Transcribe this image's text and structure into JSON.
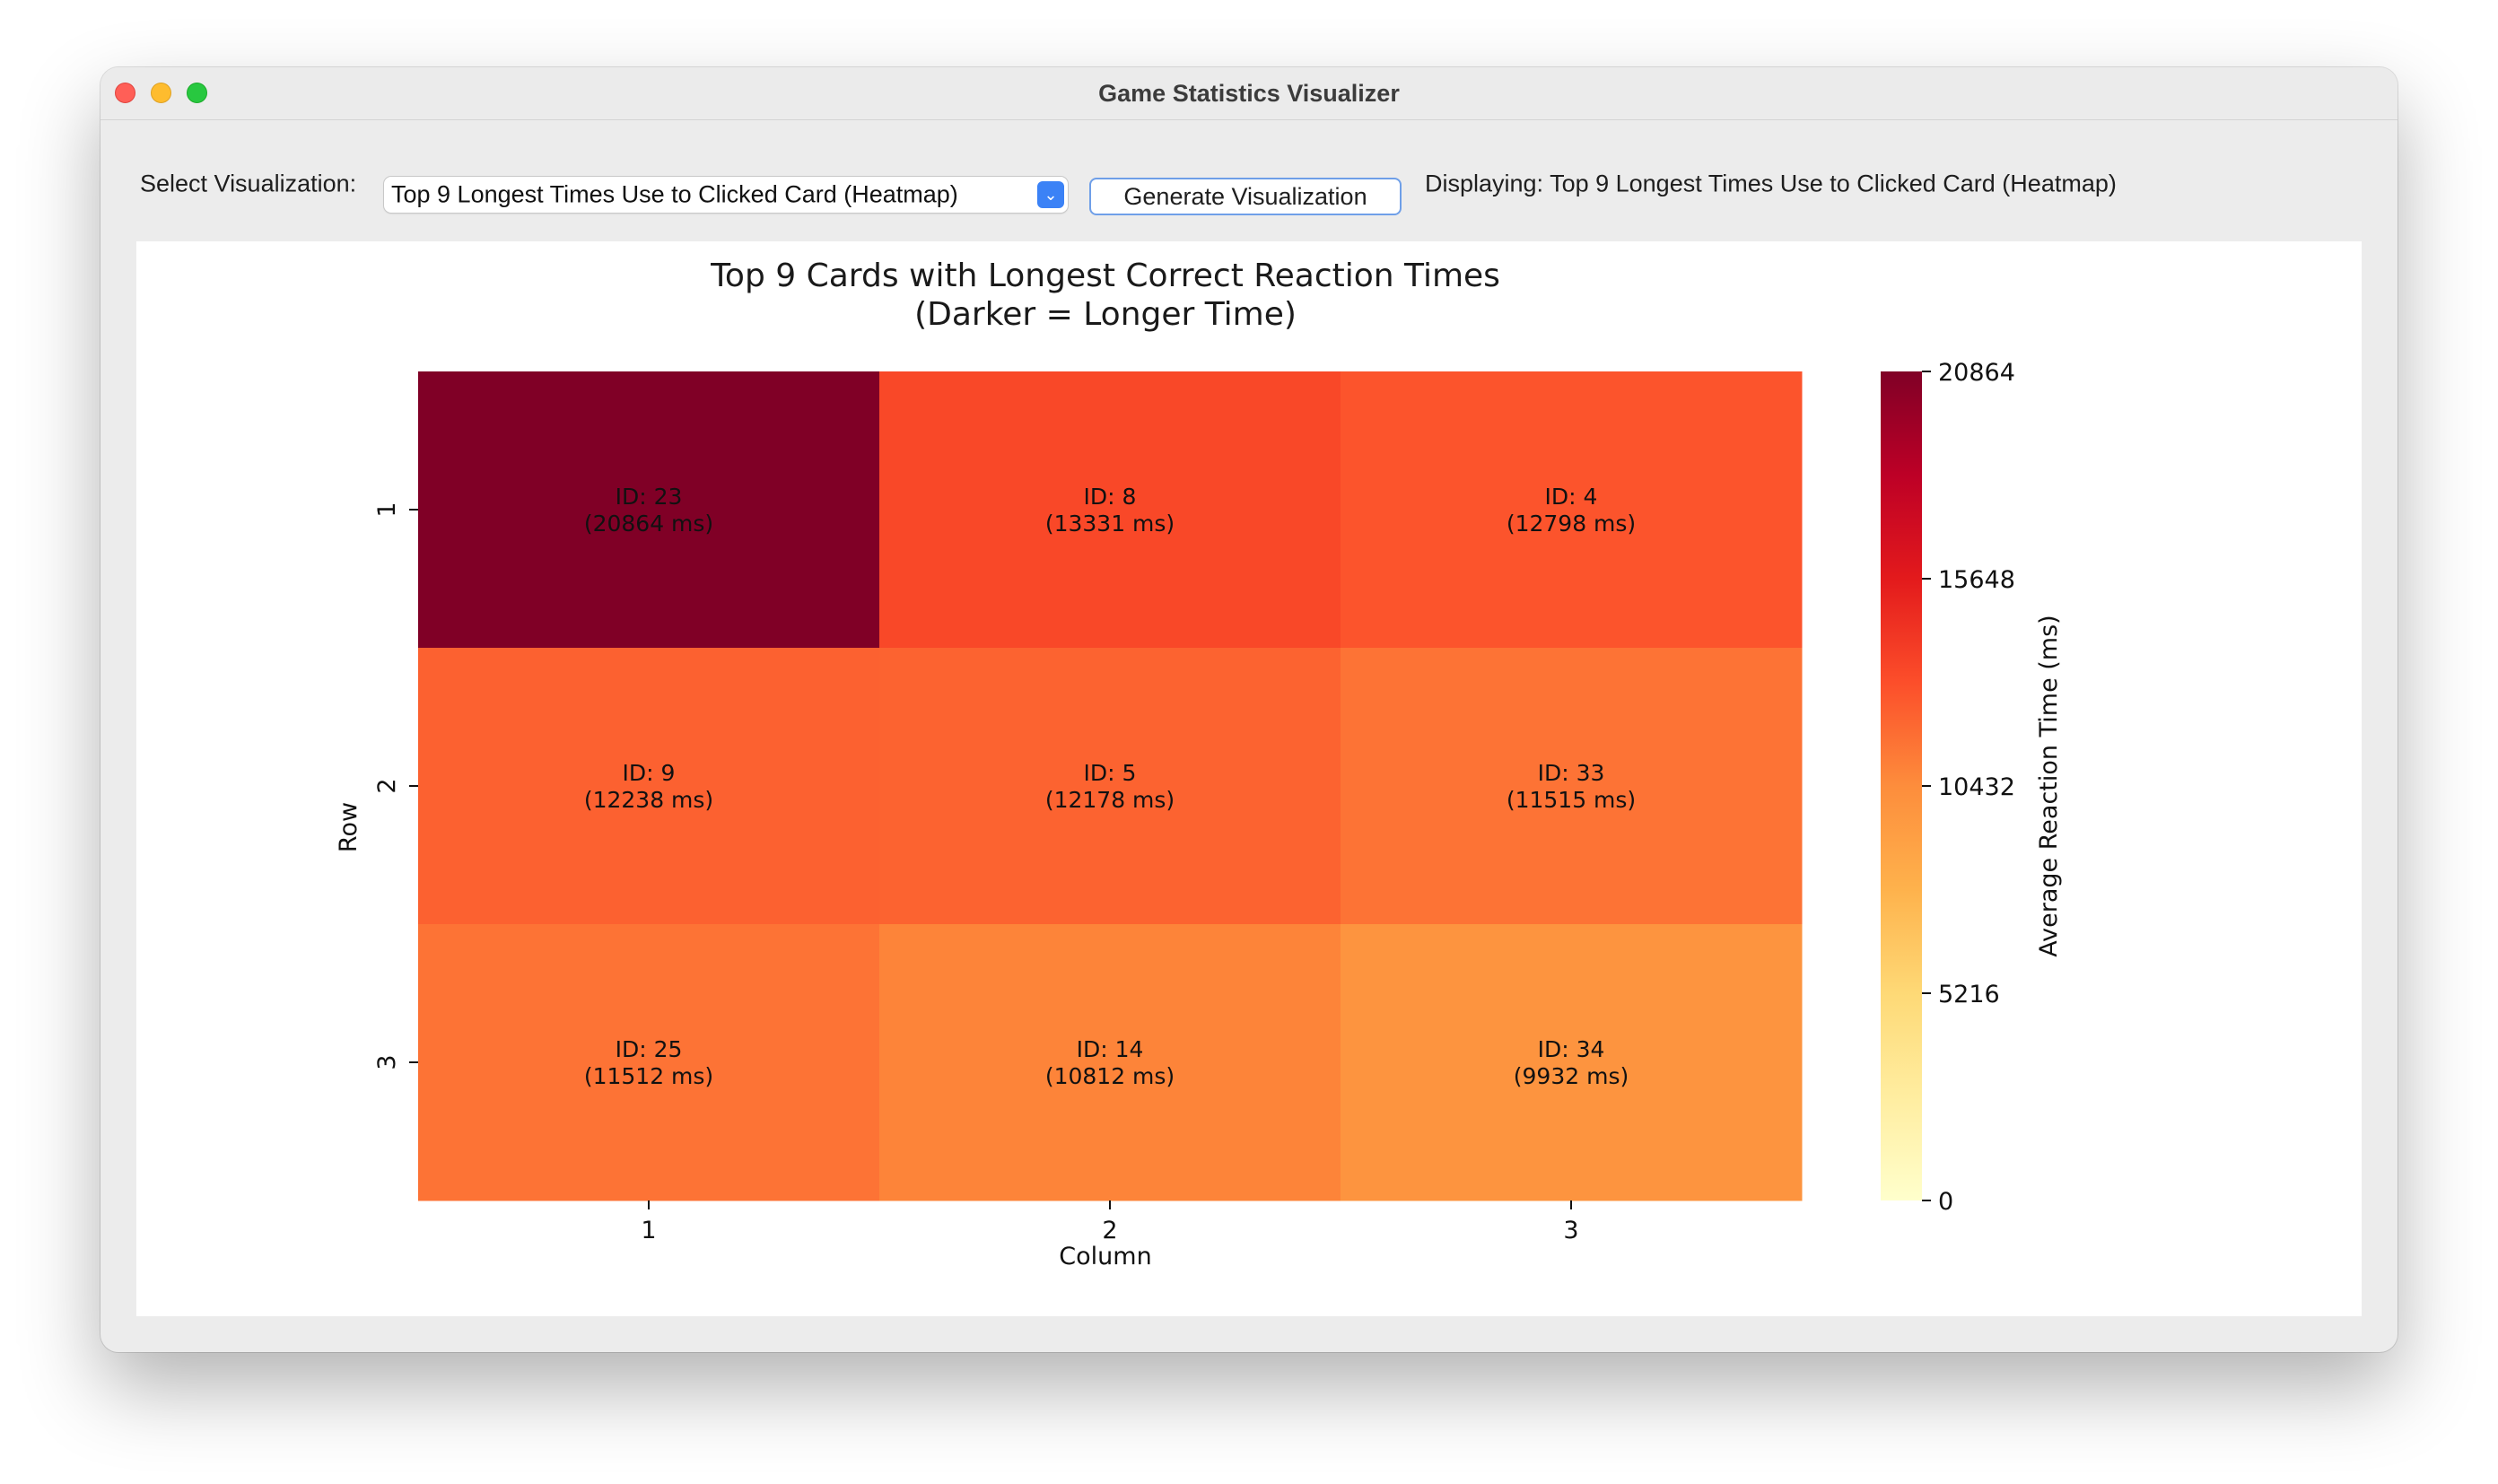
{
  "window": {
    "title": "Game Statistics Visualizer"
  },
  "toolbar": {
    "select_label": "Select Visualization:",
    "selected_option": "Top 9 Longest Times Use to Clicked Card (Heatmap)",
    "generate_button": "Generate Visualization",
    "status_text": "Displaying: Top 9 Longest Times Use to Clicked Card (Heatmap)"
  },
  "icons": {
    "dropdown": "chevron-down-icon"
  },
  "chart_data": {
    "type": "heatmap",
    "title": "Top 9 Cards with Longest Correct Reaction Times",
    "subtitle": "(Darker = Longer Time)",
    "xlabel": "Column",
    "ylabel": "Row",
    "x_categories": [
      "1",
      "2",
      "3"
    ],
    "y_categories": [
      "1",
      "2",
      "3"
    ],
    "cells": [
      [
        {
          "id_label": "ID: 23",
          "value_label": "(20864 ms)",
          "value": 20864
        },
        {
          "id_label": "ID: 8",
          "value_label": "(13331 ms)",
          "value": 13331
        },
        {
          "id_label": "ID: 4",
          "value_label": "(12798 ms)",
          "value": 12798
        }
      ],
      [
        {
          "id_label": "ID: 9",
          "value_label": "(12238 ms)",
          "value": 12238
        },
        {
          "id_label": "ID: 5",
          "value_label": "(12178 ms)",
          "value": 12178
        },
        {
          "id_label": "ID: 33",
          "value_label": "(11515 ms)",
          "value": 11515
        }
      ],
      [
        {
          "id_label": "ID: 25",
          "value_label": "(11512 ms)",
          "value": 11512
        },
        {
          "id_label": "ID: 14",
          "value_label": "(10812 ms)",
          "value": 10812
        },
        {
          "id_label": "ID: 34",
          "value_label": "(9932 ms)",
          "value": 9932
        }
      ]
    ],
    "colorbar": {
      "label": "Average Reaction Time (ms)",
      "range": [
        0,
        20864
      ],
      "ticks": [
        0,
        5216,
        10432,
        15648,
        20864
      ],
      "colormap": "YlOrRd",
      "stops": [
        "#ffffcc",
        "#ffeda0",
        "#fed976",
        "#feb24c",
        "#fd8d3c",
        "#fc4e2a",
        "#e31a1c",
        "#bd0026",
        "#800026"
      ]
    }
  }
}
